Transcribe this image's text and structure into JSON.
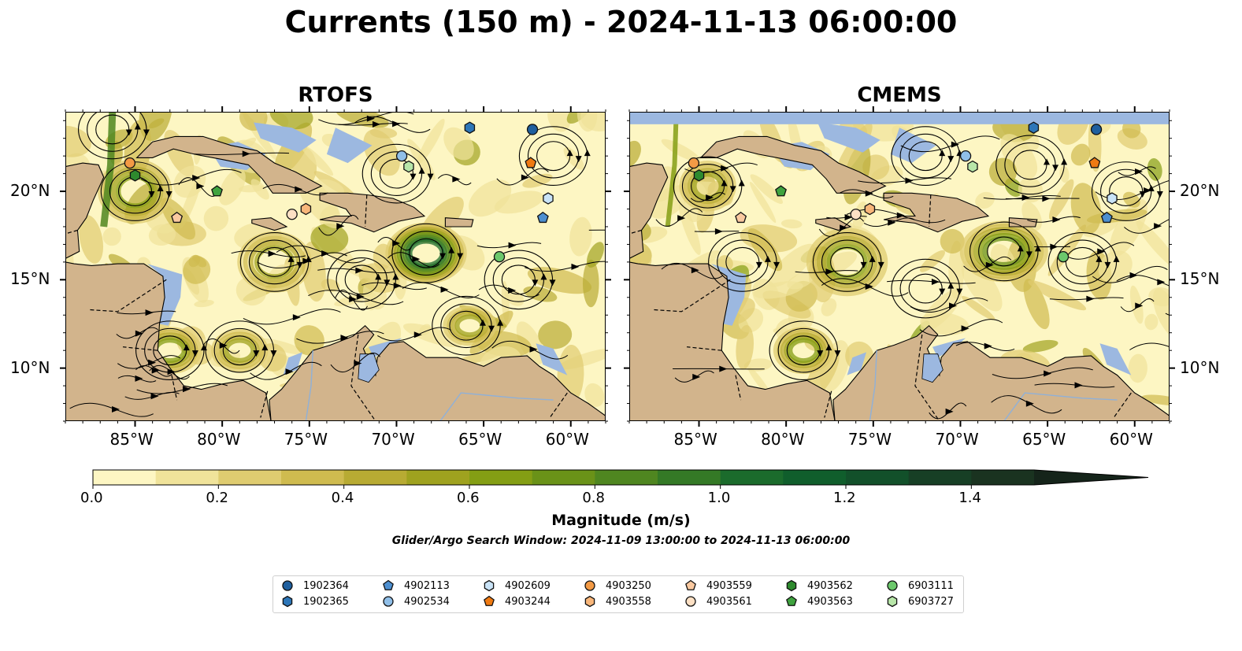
{
  "figure": {
    "title": "Currents (150 m) - 2024-11-13 06:00:00",
    "panels": [
      {
        "title": "RTOFS"
      },
      {
        "title": "CMEMS"
      }
    ],
    "lon_ticks": [
      "85°W",
      "80°W",
      "75°W",
      "70°W",
      "65°W",
      "60°W"
    ],
    "lat_ticks": [
      "20°N",
      "15°N",
      "10°N"
    ],
    "extent": {
      "lon": [
        -89,
        -58
      ],
      "lat": [
        7,
        24.5
      ]
    }
  },
  "colorbar": {
    "label": "Magnitude (m/s)",
    "ticks": [
      "0.0",
      "0.2",
      "0.4",
      "0.6",
      "0.8",
      "1.0",
      "1.2",
      "1.4"
    ],
    "range": [
      0,
      1.5
    ],
    "extend": "max",
    "colors": [
      "#fdf6c3",
      "#f0e39a",
      "#dfcc70",
      "#cfbb4f",
      "#b8ab33",
      "#9fa21f",
      "#849e14",
      "#6a9218",
      "#4f8620",
      "#347926",
      "#1b6b2c",
      "#105e2c",
      "#12502a",
      "#173f25",
      "#1a3320"
    ]
  },
  "search_window": "Glider/Argo Search Window: 2024-11-09 13:00:00 to 2024-11-13 06:00:00",
  "colors": {
    "land": "#d2b48c",
    "water": "#9cb8e0",
    "low_speed": "#fdf6c3"
  },
  "floats": [
    {
      "id": "1902364",
      "marker": "circle",
      "color": "#1f5f9e",
      "lon": -62.2,
      "lat": 23.5
    },
    {
      "id": "1902365",
      "marker": "hexagon",
      "color": "#2d76b8",
      "lon": -65.8,
      "lat": 23.6
    },
    {
      "id": "4902113",
      "marker": "pentagon",
      "color": "#4d8fd0",
      "lon": -61.6,
      "lat": 18.5
    },
    {
      "id": "4902534",
      "marker": "circle",
      "color": "#90bfe8",
      "lon": -69.7,
      "lat": 22.0
    },
    {
      "id": "4902609",
      "marker": "hexagon",
      "color": "#c9e3f7",
      "lon": -61.3,
      "lat": 19.6
    },
    {
      "id": "4903244",
      "marker": "pentagon",
      "color": "#ef7a12",
      "lon": -62.3,
      "lat": 21.6
    },
    {
      "id": "4903250",
      "marker": "circle",
      "color": "#f39a45",
      "lon": -85.3,
      "lat": 21.6
    },
    {
      "id": "4903558",
      "marker": "hexagon",
      "color": "#f8b67a",
      "lon": -75.2,
      "lat": 19.0
    },
    {
      "id": "4903559",
      "marker": "pentagon",
      "color": "#fac9a0",
      "lon": -82.6,
      "lat": 18.5
    },
    {
      "id": "4903561",
      "marker": "circle",
      "color": "#fde0c4",
      "lon": -76.0,
      "lat": 18.7
    },
    {
      "id": "4903562",
      "marker": "hexagon",
      "color": "#2e8a2e",
      "lon": -85.0,
      "lat": 20.9
    },
    {
      "id": "4903563",
      "marker": "pentagon",
      "color": "#3fa33f",
      "lon": -80.3,
      "lat": 20.0
    },
    {
      "id": "6903111",
      "marker": "circle",
      "color": "#6cc86c",
      "lon": -64.1,
      "lat": 16.3
    },
    {
      "id": "6903727",
      "marker": "hexagon",
      "color": "#b8e6a9",
      "lon": -69.3,
      "lat": 21.4
    }
  ]
}
